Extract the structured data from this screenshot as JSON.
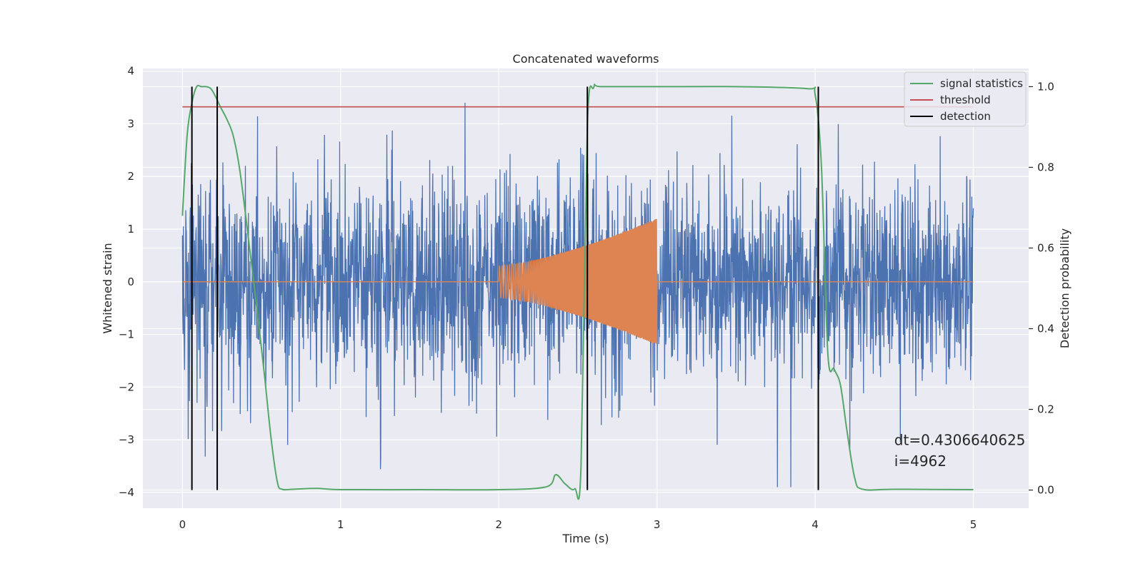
{
  "chart_data": {
    "type": "line",
    "title": "Concatenated waveforms",
    "xlabel": "Time (s)",
    "ylabel": "Whitened strain",
    "y2label": "Detection probability",
    "xlim": [
      -0.25,
      5.35
    ],
    "ylim": [
      -4.3,
      4.05
    ],
    "y2lim": [
      -0.045,
      1.045
    ],
    "xticks": [
      0,
      1,
      2,
      3,
      4,
      5
    ],
    "yticks": [
      -4,
      -3,
      -2,
      -1,
      0,
      1,
      2,
      3,
      4
    ],
    "y2ticks": [
      0.0,
      0.2,
      0.4,
      0.6,
      0.8,
      1.0
    ],
    "xtick_labels": [
      "0",
      "1",
      "2",
      "3",
      "4",
      "5"
    ],
    "ytick_labels": [
      "−4",
      "−3",
      "−2",
      "−1",
      "0",
      "1",
      "2",
      "3",
      "4"
    ],
    "y2tick_labels": [
      "0.0",
      "0.2",
      "0.4",
      "0.6",
      "0.8",
      "1.0"
    ],
    "grid": true,
    "legend_position": "top-right",
    "series": [
      {
        "kind": "noise",
        "axis": "left",
        "color": "#4c72b0",
        "x_range": [
          0,
          5
        ],
        "approx_std": 0.95,
        "peak_range": [
          -3.9,
          3.4
        ]
      },
      {
        "kind": "chirp",
        "axis": "left",
        "color": "#dd8452",
        "flat_ranges": [
          [
            0,
            2
          ],
          [
            3,
            5
          ]
        ],
        "burst_range": [
          2,
          3
        ],
        "amplitude_start": 0.3,
        "amplitude_end": 1.2
      },
      {
        "name": "signal statistics",
        "axis": "right",
        "color": "#55a868",
        "x": [
          0,
          0.03,
          0.06,
          0.09,
          0.12,
          0.15,
          0.18,
          0.21,
          0.24,
          0.28,
          0.32,
          0.36,
          0.4,
          0.44,
          0.48,
          0.52,
          0.56,
          0.6,
          0.63,
          0.7,
          0.85,
          1.0,
          1.5,
          2.0,
          2.3,
          2.36,
          2.42,
          2.48,
          2.52,
          2.56,
          2.6,
          2.65,
          3.0,
          3.5,
          3.95,
          4.0,
          4.04,
          4.08,
          4.12,
          4.16,
          4.2,
          4.25,
          4.3,
          4.5,
          5.0
        ],
        "y": [
          0.68,
          0.88,
          0.96,
          1.0,
          1.0,
          1.0,
          0.995,
          0.975,
          0.95,
          0.92,
          0.88,
          0.8,
          0.68,
          0.55,
          0.42,
          0.28,
          0.13,
          0.02,
          0.002,
          0.002,
          0.004,
          0.001,
          0.001,
          0.001,
          0.008,
          0.038,
          0.015,
          0.003,
          0.06,
          0.9,
          0.998,
          1.0,
          1.0,
          1.0,
          0.995,
          0.98,
          0.8,
          0.34,
          0.3,
          0.26,
          0.15,
          0.03,
          0.002,
          0.002,
          0.001
        ]
      },
      {
        "name": "threshold",
        "axis": "right",
        "color": "#c44e52",
        "x": [
          0,
          5
        ],
        "y": [
          0.95,
          0.95
        ]
      },
      {
        "name": "detection",
        "axis": "right",
        "color": "#000000",
        "segments_x": [
          0.06,
          0.22,
          2.56,
          4.02
        ],
        "y_range": [
          0.0,
          1.0
        ]
      }
    ],
    "annotations": [
      {
        "text": "dt=0.4306640625",
        "x": 4.5,
        "y": -3.1
      },
      {
        "text": " i=4962",
        "x": 4.5,
        "y": -3.5
      }
    ]
  }
}
